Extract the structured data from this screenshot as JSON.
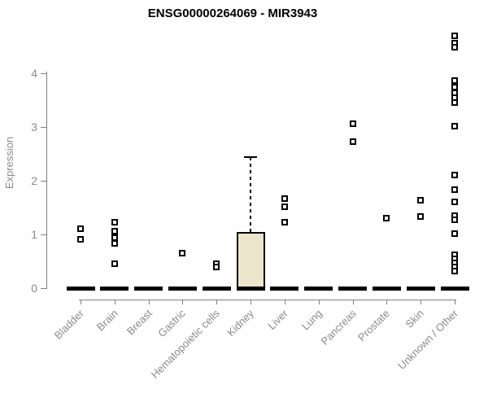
{
  "chart_data": {
    "type": "boxplot",
    "title": "ENSG00000264069 - MIR3943",
    "ylabel": "Expression",
    "yticks": [
      0,
      1,
      2,
      3,
      4
    ],
    "ylim": [
      0,
      4.8
    ],
    "grid": false,
    "legend": false,
    "categories": [
      "Bladder",
      "Brain",
      "Breast",
      "Gastric",
      "Hematopoietic cells",
      "Kidney",
      "Liver",
      "Lung",
      "Pancreas",
      "Prostate",
      "Skin",
      "Unknown / Other"
    ],
    "boxes": [
      {
        "category": "Bladder",
        "q1": 0,
        "median": 0,
        "q3": 0,
        "whisker_low": 0,
        "whisker_high": 0,
        "outliers": [
          1.11,
          0.91
        ]
      },
      {
        "category": "Brain",
        "q1": 0,
        "median": 0,
        "q3": 0,
        "whisker_low": 0,
        "whisker_high": 0,
        "outliers": [
          1.22,
          1.06,
          0.94,
          0.84,
          0.46
        ]
      },
      {
        "category": "Breast",
        "q1": 0,
        "median": 0,
        "q3": 0,
        "whisker_low": 0,
        "whisker_high": 0,
        "outliers": []
      },
      {
        "category": "Gastric",
        "q1": 0,
        "median": 0,
        "q3": 0,
        "whisker_low": 0,
        "whisker_high": 0,
        "outliers": [
          0.65
        ]
      },
      {
        "category": "Hematopoietic cells",
        "q1": 0,
        "median": 0,
        "q3": 0,
        "whisker_low": 0,
        "whisker_high": 0,
        "outliers": [
          0.46,
          0.39
        ]
      },
      {
        "category": "Kidney",
        "q1": 0,
        "median": 0,
        "q3": 1.05,
        "whisker_low": 0,
        "whisker_high": 2.44,
        "outliers": []
      },
      {
        "category": "Liver",
        "q1": 0,
        "median": 0,
        "q3": 0,
        "whisker_low": 0,
        "whisker_high": 0,
        "outliers": [
          1.66,
          1.51,
          1.22
        ]
      },
      {
        "category": "Lung",
        "q1": 0,
        "median": 0,
        "q3": 0,
        "whisker_low": 0,
        "whisker_high": 0,
        "outliers": []
      },
      {
        "category": "Pancreas",
        "q1": 0,
        "median": 0,
        "q3": 0,
        "whisker_low": 0,
        "whisker_high": 0,
        "outliers": [
          3.06,
          2.72
        ]
      },
      {
        "category": "Prostate",
        "q1": 0,
        "median": 0,
        "q3": 0,
        "whisker_low": 0,
        "whisker_high": 0,
        "outliers": [
          1.31
        ]
      },
      {
        "category": "Skin",
        "q1": 0,
        "median": 0,
        "q3": 0,
        "whisker_low": 0,
        "whisker_high": 0,
        "outliers": [
          1.64,
          1.33
        ]
      },
      {
        "category": "Unknown / Other",
        "q1": 0,
        "median": 0,
        "q3": 0,
        "whisker_low": 0,
        "whisker_high": 0,
        "outliers": [
          4.7,
          4.56,
          4.48,
          3.87,
          3.74,
          3.63,
          3.54,
          3.45,
          3.01,
          2.11,
          1.83,
          1.6,
          1.35,
          1.27,
          1.02,
          0.62,
          0.55,
          0.47,
          0.39,
          0.32
        ]
      }
    ],
    "colors": {
      "box_fill": "#ece5cb",
      "box_border": "#000000",
      "point": "#000000",
      "axis": "#808080",
      "tick_label": "#8a8a8a",
      "title": "#000000",
      "background": "#ffffff"
    }
  }
}
